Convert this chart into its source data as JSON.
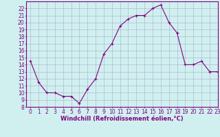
{
  "x": [
    0,
    1,
    2,
    3,
    4,
    5,
    6,
    7,
    8,
    9,
    10,
    11,
    12,
    13,
    14,
    15,
    16,
    17,
    18,
    19,
    20,
    21,
    22,
    23
  ],
  "y": [
    14.5,
    11.5,
    10.0,
    10.0,
    9.5,
    9.5,
    8.5,
    10.5,
    12.0,
    15.5,
    17.0,
    19.5,
    20.5,
    21.0,
    21.0,
    22.0,
    22.5,
    20.0,
    18.5,
    14.0,
    14.0,
    14.5,
    13.0,
    13.0
  ],
  "line_color": "#800080",
  "marker": "+",
  "marker_color": "#800080",
  "bg_color": "#d0f0f0",
  "grid_color": "#aaaacc",
  "xlabel": "Windchill (Refroidissement éolien,°C)",
  "xlabel_color": "#800080",
  "tick_color": "#800080",
  "spine_color": "#800080",
  "ylim": [
    8,
    23
  ],
  "xlim": [
    -0.5,
    23
  ],
  "yticks": [
    8,
    9,
    10,
    11,
    12,
    13,
    14,
    15,
    16,
    17,
    18,
    19,
    20,
    21,
    22
  ],
  "xticks": [
    0,
    1,
    2,
    3,
    4,
    5,
    6,
    7,
    8,
    9,
    10,
    11,
    12,
    13,
    14,
    15,
    16,
    17,
    18,
    19,
    20,
    21,
    22,
    23
  ],
  "label_fontsize": 6.0,
  "tick_fontsize": 5.5
}
